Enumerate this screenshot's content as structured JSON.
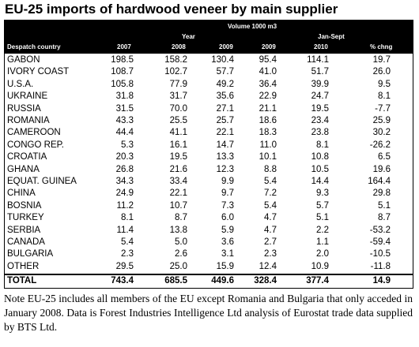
{
  "title": "EU-25 imports of hardwood veneer by main supplier",
  "header": {
    "volume": "Volume 1000 m3",
    "year": "Year",
    "jan_sept": "Jan-Sept",
    "despatch": "Despatch country",
    "cols": [
      "2007",
      "2008",
      "2009",
      "2009",
      "2010",
      "% chng"
    ]
  },
  "rows": [
    {
      "country": "GABON",
      "v": [
        "198.5",
        "158.2",
        "130.4",
        "95.4",
        "114.1",
        "19.7"
      ]
    },
    {
      "country": "IVORY COAST",
      "v": [
        "108.7",
        "102.7",
        "57.7",
        "41.0",
        "51.7",
        "26.0"
      ]
    },
    {
      "country": "U.S.A.",
      "v": [
        "105.8",
        "77.9",
        "49.2",
        "36.4",
        "39.9",
        "9.5"
      ]
    },
    {
      "country": "UKRAINE",
      "v": [
        "31.8",
        "31.7",
        "35.6",
        "22.9",
        "24.7",
        "8.1"
      ]
    },
    {
      "country": "RUSSIA",
      "v": [
        "31.5",
        "70.0",
        "27.1",
        "21.1",
        "19.5",
        "-7.7"
      ]
    },
    {
      "country": "ROMANIA",
      "v": [
        "43.3",
        "25.5",
        "25.7",
        "18.6",
        "23.4",
        "25.9"
      ]
    },
    {
      "country": "CAMEROON",
      "v": [
        "44.4",
        "41.1",
        "22.1",
        "18.3",
        "23.8",
        "30.2"
      ]
    },
    {
      "country": "CONGO REP.",
      "v": [
        "5.3",
        "16.1",
        "14.7",
        "11.0",
        "8.1",
        "-26.2"
      ]
    },
    {
      "country": "CROATIA",
      "v": [
        "20.3",
        "19.5",
        "13.3",
        "10.1",
        "10.8",
        "6.5"
      ]
    },
    {
      "country": "GHANA",
      "v": [
        "26.8",
        "21.6",
        "12.3",
        "8.8",
        "10.5",
        "19.6"
      ]
    },
    {
      "country": "EQUAT. GUINEA",
      "v": [
        "34.3",
        "33.4",
        "9.9",
        "5.4",
        "14.4",
        "164.4"
      ]
    },
    {
      "country": "CHINA",
      "v": [
        "24.9",
        "22.1",
        "9.7",
        "7.2",
        "9.3",
        "29.8"
      ]
    },
    {
      "country": "BOSNIA",
      "v": [
        "11.2",
        "10.7",
        "7.3",
        "5.4",
        "5.7",
        "5.1"
      ]
    },
    {
      "country": "TURKEY",
      "v": [
        "8.1",
        "8.7",
        "6.0",
        "4.7",
        "5.1",
        "8.7"
      ]
    },
    {
      "country": "SERBIA",
      "v": [
        "11.4",
        "13.8",
        "5.9",
        "4.7",
        "2.2",
        "-53.2"
      ]
    },
    {
      "country": "CANADA",
      "v": [
        "5.4",
        "5.0",
        "3.6",
        "2.7",
        "1.1",
        "-59.4"
      ]
    },
    {
      "country": "BULGARIA",
      "v": [
        "2.3",
        "2.6",
        "3.1",
        "2.3",
        "2.0",
        "-10.5"
      ]
    },
    {
      "country": "OTHER",
      "v": [
        "29.5",
        "25.0",
        "15.9",
        "12.4",
        "10.9",
        "-11.8"
      ]
    }
  ],
  "total": {
    "country": "TOTAL",
    "v": [
      "743.4",
      "685.5",
      "449.6",
      "328.4",
      "377.4",
      "14.9"
    ]
  },
  "note": "Note EU-25 includes all members of the EU except Romania and Bulgaria that only acceded in January 2008. Data is Forest Industries Intelligence Ltd analysis of Eurostat trade data supplied by BTS Ltd."
}
